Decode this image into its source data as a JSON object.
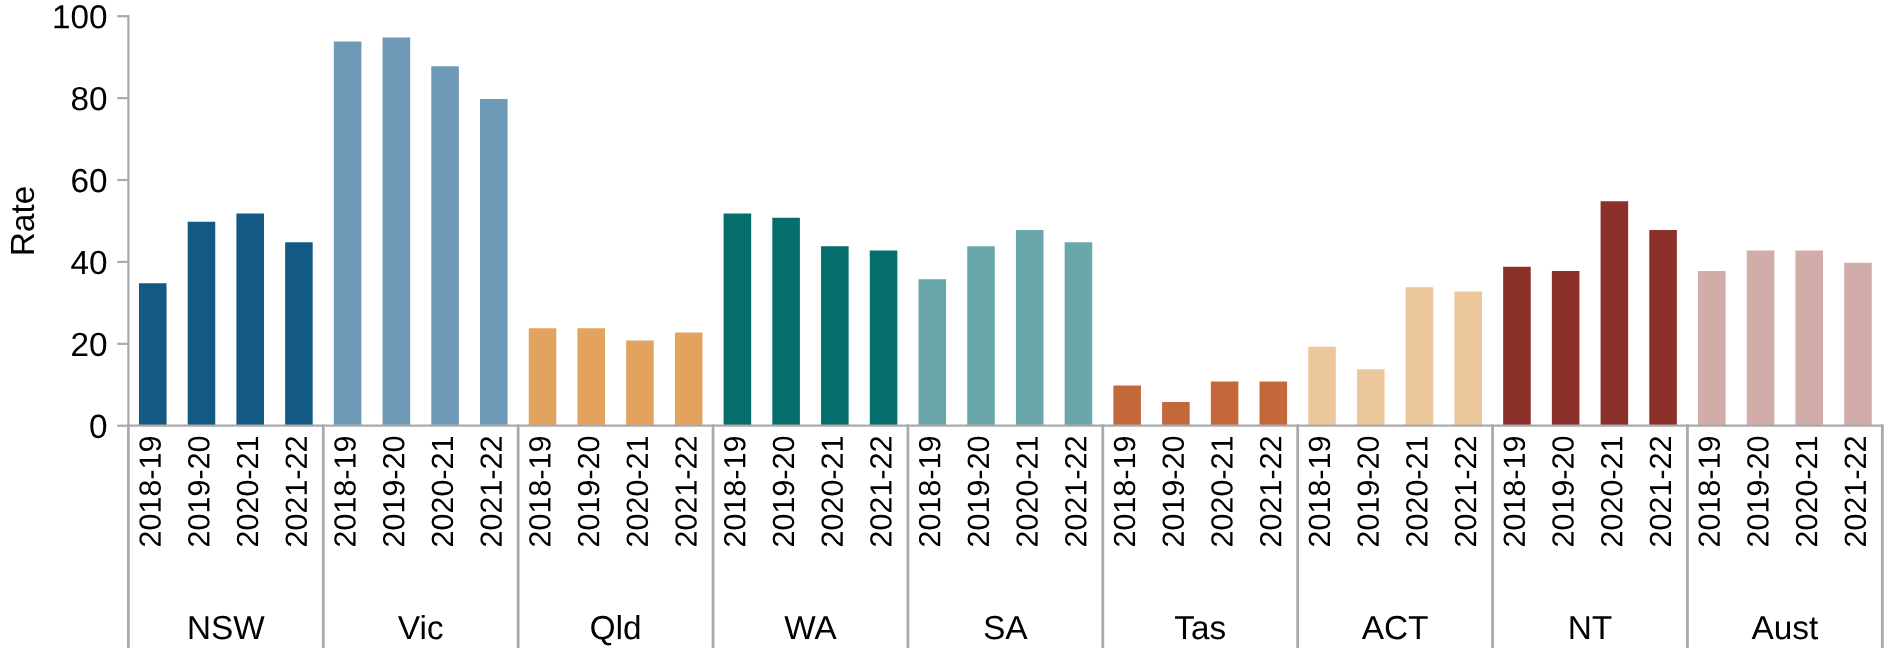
{
  "chart_data": {
    "type": "bar",
    "ylabel": "Rate",
    "ylim": [
      0,
      100
    ],
    "yticks": [
      0,
      20,
      40,
      60,
      80,
      100
    ],
    "grid": false,
    "legend": false,
    "annotations": [
      "NSW",
      "Vic",
      "Qld",
      "WA",
      "SA",
      "Tas",
      "ACT",
      "NT",
      "Aust"
    ],
    "categories": [
      "2018-19",
      "2019-20",
      "2020-21",
      "2021-22",
      "2018-19",
      "2019-20",
      "2020-21",
      "2021-22",
      "2018-19",
      "2019-20",
      "2020-21",
      "2021-22",
      "2018-19",
      "2019-20",
      "2020-21",
      "2021-22",
      "2018-19",
      "2019-20",
      "2020-21",
      "2021-22",
      "2018-19",
      "2019-20",
      "2020-21",
      "2021-22",
      "2018-19",
      "2019-20",
      "2020-21",
      "2021-22",
      "2018-19",
      "2019-20",
      "2020-21",
      "2021-22",
      "2018-19",
      "2019-20",
      "2020-21",
      "2021-22"
    ],
    "series": [
      {
        "color": "#125a84",
        "values": [
          35,
          50,
          52,
          45,
          null,
          null,
          null,
          null,
          null,
          null,
          null,
          null,
          null,
          null,
          null,
          null,
          null,
          null,
          null,
          null,
          null,
          null,
          null,
          null,
          null,
          null,
          null,
          null,
          null,
          null,
          null,
          null,
          null,
          null,
          null,
          null
        ]
      },
      {
        "color": "#6e9ab7",
        "values": [
          null,
          null,
          null,
          null,
          94,
          95,
          88,
          80,
          null,
          null,
          null,
          null,
          null,
          null,
          null,
          null,
          null,
          null,
          null,
          null,
          null,
          null,
          null,
          null,
          null,
          null,
          null,
          null,
          null,
          null,
          null,
          null,
          null,
          null,
          null,
          null
        ]
      },
      {
        "color": "#e2a35e",
        "values": [
          null,
          null,
          null,
          null,
          null,
          null,
          null,
          null,
          24,
          24,
          21,
          23,
          null,
          null,
          null,
          null,
          null,
          null,
          null,
          null,
          null,
          null,
          null,
          null,
          null,
          null,
          null,
          null,
          null,
          null,
          null,
          null,
          null,
          null,
          null,
          null
        ]
      },
      {
        "color": "#066d6d",
        "values": [
          null,
          null,
          null,
          null,
          null,
          null,
          null,
          null,
          null,
          null,
          null,
          null,
          52,
          51,
          44,
          43,
          null,
          null,
          null,
          null,
          null,
          null,
          null,
          null,
          null,
          null,
          null,
          null,
          null,
          null,
          null,
          null,
          null,
          null,
          null,
          null
        ]
      },
      {
        "color": "#69a7aa",
        "values": [
          null,
          null,
          null,
          null,
          null,
          null,
          null,
          null,
          null,
          null,
          null,
          null,
          null,
          null,
          null,
          null,
          36,
          44,
          48,
          45,
          null,
          null,
          null,
          null,
          null,
          null,
          null,
          null,
          null,
          null,
          null,
          null,
          null,
          null,
          null,
          null
        ]
      },
      {
        "color": "#c4683c",
        "values": [
          null,
          null,
          null,
          null,
          null,
          null,
          null,
          null,
          null,
          null,
          null,
          null,
          null,
          null,
          null,
          null,
          null,
          null,
          null,
          null,
          10,
          6,
          11,
          11,
          null,
          null,
          null,
          null,
          null,
          null,
          null,
          null,
          null,
          null,
          null,
          null
        ]
      },
      {
        "color": "#edc79c",
        "values": [
          null,
          null,
          null,
          null,
          null,
          null,
          null,
          null,
          null,
          null,
          null,
          null,
          null,
          null,
          null,
          null,
          null,
          null,
          null,
          null,
          null,
          null,
          null,
          null,
          19.5,
          14,
          34,
          33,
          null,
          null,
          null,
          null,
          null,
          null,
          null,
          null
        ]
      },
      {
        "color": "#8b312a",
        "values": [
          null,
          null,
          null,
          null,
          null,
          null,
          null,
          null,
          null,
          null,
          null,
          null,
          null,
          null,
          null,
          null,
          null,
          null,
          null,
          null,
          null,
          null,
          null,
          null,
          null,
          null,
          null,
          null,
          39,
          38,
          55,
          48,
          null,
          null,
          null,
          null
        ]
      },
      {
        "color": "#d2aca8",
        "values": [
          null,
          null,
          null,
          null,
          null,
          null,
          null,
          null,
          null,
          null,
          null,
          null,
          null,
          null,
          null,
          null,
          null,
          null,
          null,
          null,
          null,
          null,
          null,
          null,
          null,
          null,
          null,
          null,
          null,
          null,
          null,
          null,
          38,
          43,
          43,
          40
        ]
      }
    ]
  }
}
